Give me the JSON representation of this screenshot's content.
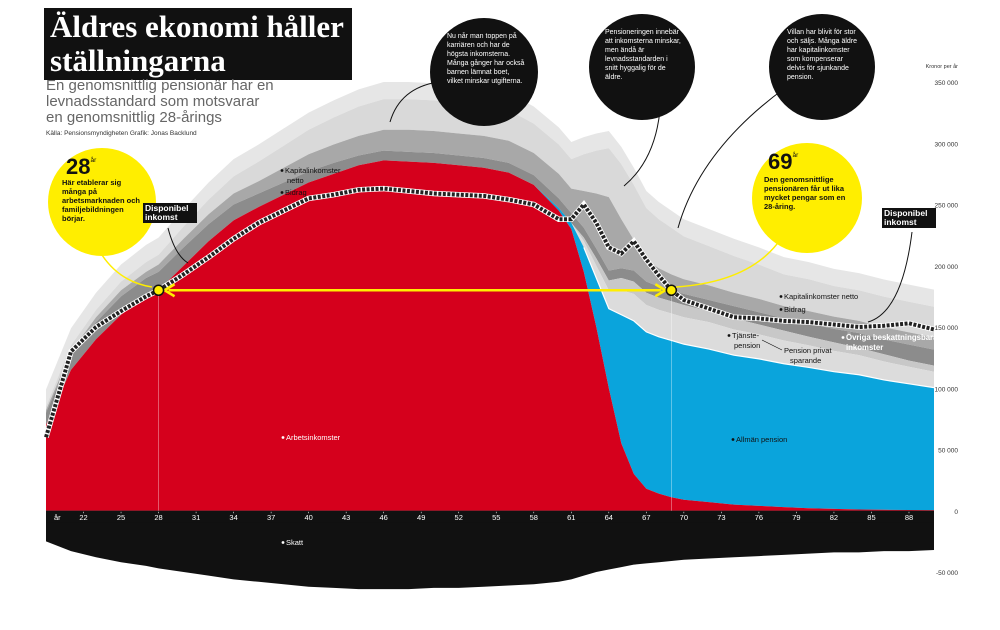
{
  "header": {
    "title_line1": "Äldres ekonomi håller",
    "title_line2": "ställningarna",
    "subtitle": "En genomsnittlig pensionär har en levnadsstandard som motsvarar en genomsnittlig 28-årings",
    "source": "Källa: Pensionsmyndigheten  Grafik: Jonas Backlund"
  },
  "callouts": {
    "peak": "Nu når man toppen på karriären och har de högsta inkomsterna. Många gånger har också barnen lämnat boet, vilket minskar utgifterna.",
    "pension_start": "Pensioneringen innebär att inkomsterna minskar, men ändå är levnadsstandarden i snitt hyggalig för de äldre.",
    "house": "Villan har blivit för stor och säljs. Många äldre har kapitalinkomster som kompenserar delvis för sjunkande pension.",
    "age28_number": "28",
    "age28_unit": "år",
    "age28_text": "Här etablerar sig många på arbetsmarknaden och familjebildningen börjar.",
    "age69_number": "69",
    "age69_unit": "år",
    "age69_text": "Den genomsnittlige pensionären får ut lika mycket pengar som en 28-åring.",
    "disp_left": "Disponibel inkomst",
    "disp_right": "Disponibel inkomst"
  },
  "colors": {
    "arbetsinkomster": "#d5001c",
    "allman_pension": "#0aa4dc",
    "bidrag": "#8c8c8c",
    "kapital": "#a8a8a8",
    "kapital_light": "#e6e6e6",
    "tjanstepension": "#dcdcdc",
    "privat": "#c8c8c8",
    "skatt": "#111111",
    "disponibel": "#222222",
    "highlight": "#ffee00"
  },
  "chart_data": {
    "type": "area",
    "yaxis_label": "Kronor per år",
    "ylim": [
      -50000,
      350000
    ],
    "yticks": [
      {
        "value": 350000,
        "label": "350 000"
      },
      {
        "value": 300000,
        "label": "300 000"
      },
      {
        "value": 250000,
        "label": "250 000"
      },
      {
        "value": 200000,
        "label": "200 000"
      },
      {
        "value": 150000,
        "label": "150 000"
      },
      {
        "value": 100000,
        "label": "100 000"
      },
      {
        "value": 50000,
        "label": "50 000"
      },
      {
        "value": 0,
        "label": "0"
      },
      {
        "value": -50000,
        "label": "-50 000"
      }
    ],
    "xaxis_label": "år",
    "xlim": [
      19,
      90
    ],
    "xticks": [
      22,
      25,
      28,
      31,
      34,
      37,
      40,
      43,
      46,
      49,
      52,
      55,
      58,
      61,
      64,
      67,
      70,
      73,
      76,
      79,
      82,
      85,
      88
    ],
    "x": [
      19,
      21,
      23,
      25,
      27,
      28,
      30,
      32,
      34,
      36,
      38,
      40,
      42,
      44,
      46,
      48,
      50,
      52,
      54,
      56,
      58,
      60,
      61,
      62,
      63,
      64,
      65,
      66,
      67,
      68,
      69,
      70,
      72,
      74,
      76,
      78,
      80,
      82,
      84,
      86,
      88,
      90
    ],
    "series": [
      {
        "name": "Arbetsinkomster",
        "values": [
          70000,
          115000,
          140000,
          160000,
          175000,
          180000,
          200000,
          220000,
          237000,
          248000,
          258000,
          268000,
          275000,
          282000,
          286000,
          285000,
          284000,
          282000,
          280000,
          276000,
          266000,
          245000,
          230000,
          195000,
          150000,
          100000,
          55000,
          30000,
          18000,
          14000,
          11000,
          9000,
          7000,
          5000,
          4000,
          3000,
          2000,
          1500,
          1000,
          800,
          600,
          500
        ]
      },
      {
        "name": "Allmän pension",
        "values": [
          0,
          0,
          0,
          0,
          0,
          0,
          0,
          0,
          0,
          0,
          0,
          0,
          0,
          0,
          0,
          0,
          0,
          0,
          0,
          0,
          0,
          2000,
          5000,
          20000,
          40000,
          65000,
          105000,
          125000,
          128000,
          128000,
          128000,
          127000,
          125000,
          122000,
          120000,
          117000,
          115000,
          112000,
          110000,
          106000,
          103000,
          100000
        ]
      },
      {
        "name": "Tjänstepension",
        "values": [
          0,
          0,
          0,
          0,
          0,
          0,
          0,
          0,
          0,
          0,
          0,
          0,
          0,
          0,
          0,
          0,
          0,
          0,
          0,
          0,
          0,
          0,
          0,
          5000,
          10000,
          15000,
          20000,
          22000,
          22000,
          22000,
          22000,
          22000,
          22000,
          21000,
          20000,
          19000,
          18000,
          17000,
          16000,
          15000,
          14000,
          13000
        ]
      },
      {
        "name": "Pension privat sparande",
        "values": [
          0,
          0,
          0,
          0,
          0,
          0,
          0,
          0,
          0,
          0,
          0,
          0,
          0,
          0,
          0,
          0,
          0,
          0,
          0,
          0,
          0,
          0,
          0,
          3000,
          6000,
          8000,
          10000,
          10000,
          10000,
          10000,
          10000,
          10000,
          9000,
          9000,
          8000,
          8000,
          7000,
          7000,
          6000,
          6000,
          5000,
          5000
        ]
      },
      {
        "name": "Bidrag",
        "values": [
          10000,
          12000,
          14000,
          15000,
          15000,
          15000,
          15000,
          14000,
          13000,
          11000,
          10000,
          9000,
          9000,
          8000,
          8000,
          8000,
          8000,
          8000,
          8000,
          8000,
          8000,
          8000,
          8000,
          8000,
          8000,
          8000,
          8000,
          9000,
          9000,
          9000,
          9000,
          9000,
          9000,
          10000,
          10000,
          10000,
          11000,
          11000,
          12000,
          12000,
          13000,
          13000
        ]
      },
      {
        "name": "Kapitalinkomster netto",
        "values": [
          2000,
          3000,
          4000,
          5000,
          5000,
          6000,
          7000,
          8000,
          9000,
          10000,
          12000,
          14000,
          15000,
          16000,
          17000,
          18000,
          18000,
          18000,
          18000,
          18000,
          18000,
          20000,
          20000,
          30000,
          45000,
          60000,
          40000,
          25000,
          18000,
          15000,
          13000,
          12000,
          12000,
          11000,
          11000,
          10000,
          10000,
          10000,
          10000,
          10000,
          10000,
          10000
        ]
      },
      {
        "name": "Övriga beskattningsbara inkomster",
        "values": [
          3000,
          5000,
          6000,
          7000,
          8000,
          8000,
          10000,
          12000,
          14000,
          16000,
          18000,
          20000,
          22000,
          24000,
          25000,
          25000,
          25000,
          25000,
          25000,
          25000,
          24000,
          24000,
          24000,
          30000,
          35000,
          40000,
          45000,
          45000,
          42000,
          40000,
          38000,
          35000,
          32000,
          30000,
          28000,
          26000,
          26000,
          25000,
          25000,
          25000,
          25000,
          25000
        ]
      },
      {
        "name": "Skatt",
        "values": [
          -25000,
          -33000,
          -38000,
          -42000,
          -45000,
          -47000,
          -50000,
          -53000,
          -56000,
          -58000,
          -60000,
          -62000,
          -63000,
          -64000,
          -64000,
          -64000,
          -63000,
          -63000,
          -62000,
          -61000,
          -60000,
          -58000,
          -56000,
          -53000,
          -50000,
          -48000,
          -46000,
          -44000,
          -43000,
          -42000,
          -41000,
          -40000,
          -39000,
          -38000,
          -37000,
          -36000,
          -35000,
          -34000,
          -34000,
          -33000,
          -33000,
          -32000
        ]
      },
      {
        "name": "Disponibel inkomst",
        "values": [
          60000,
          130000,
          150000,
          163000,
          175000,
          180000,
          193000,
          207000,
          222000,
          235000,
          245000,
          255000,
          258000,
          262000,
          263000,
          261000,
          259000,
          258000,
          257000,
          254000,
          250000,
          238000,
          238000,
          250000,
          235000,
          215000,
          210000,
          220000,
          205000,
          192000,
          180000,
          172000,
          165000,
          158000,
          157000,
          155000,
          154000,
          152000,
          150000,
          151000,
          153000,
          148000
        ]
      }
    ],
    "annotations": {
      "arbetsinkomster": "Arbetsinkomster",
      "allman_pension": "Allmän pension",
      "skatt": "Skatt",
      "kapital_left": "Kapitalinkomster netto",
      "bidrag_left": "Bidrag",
      "kapital_right": "Kapitalinkomster netto",
      "bidrag_right": "Bidrag",
      "tjanstepension": "Tjänstepension",
      "privat": "Pension privat sparande",
      "ovriga": "Övriga beskattningsbara inkomster"
    },
    "highlight_points": [
      {
        "age": 28,
        "value": 180000
      },
      {
        "age": 69,
        "value": 180000
      }
    ]
  }
}
